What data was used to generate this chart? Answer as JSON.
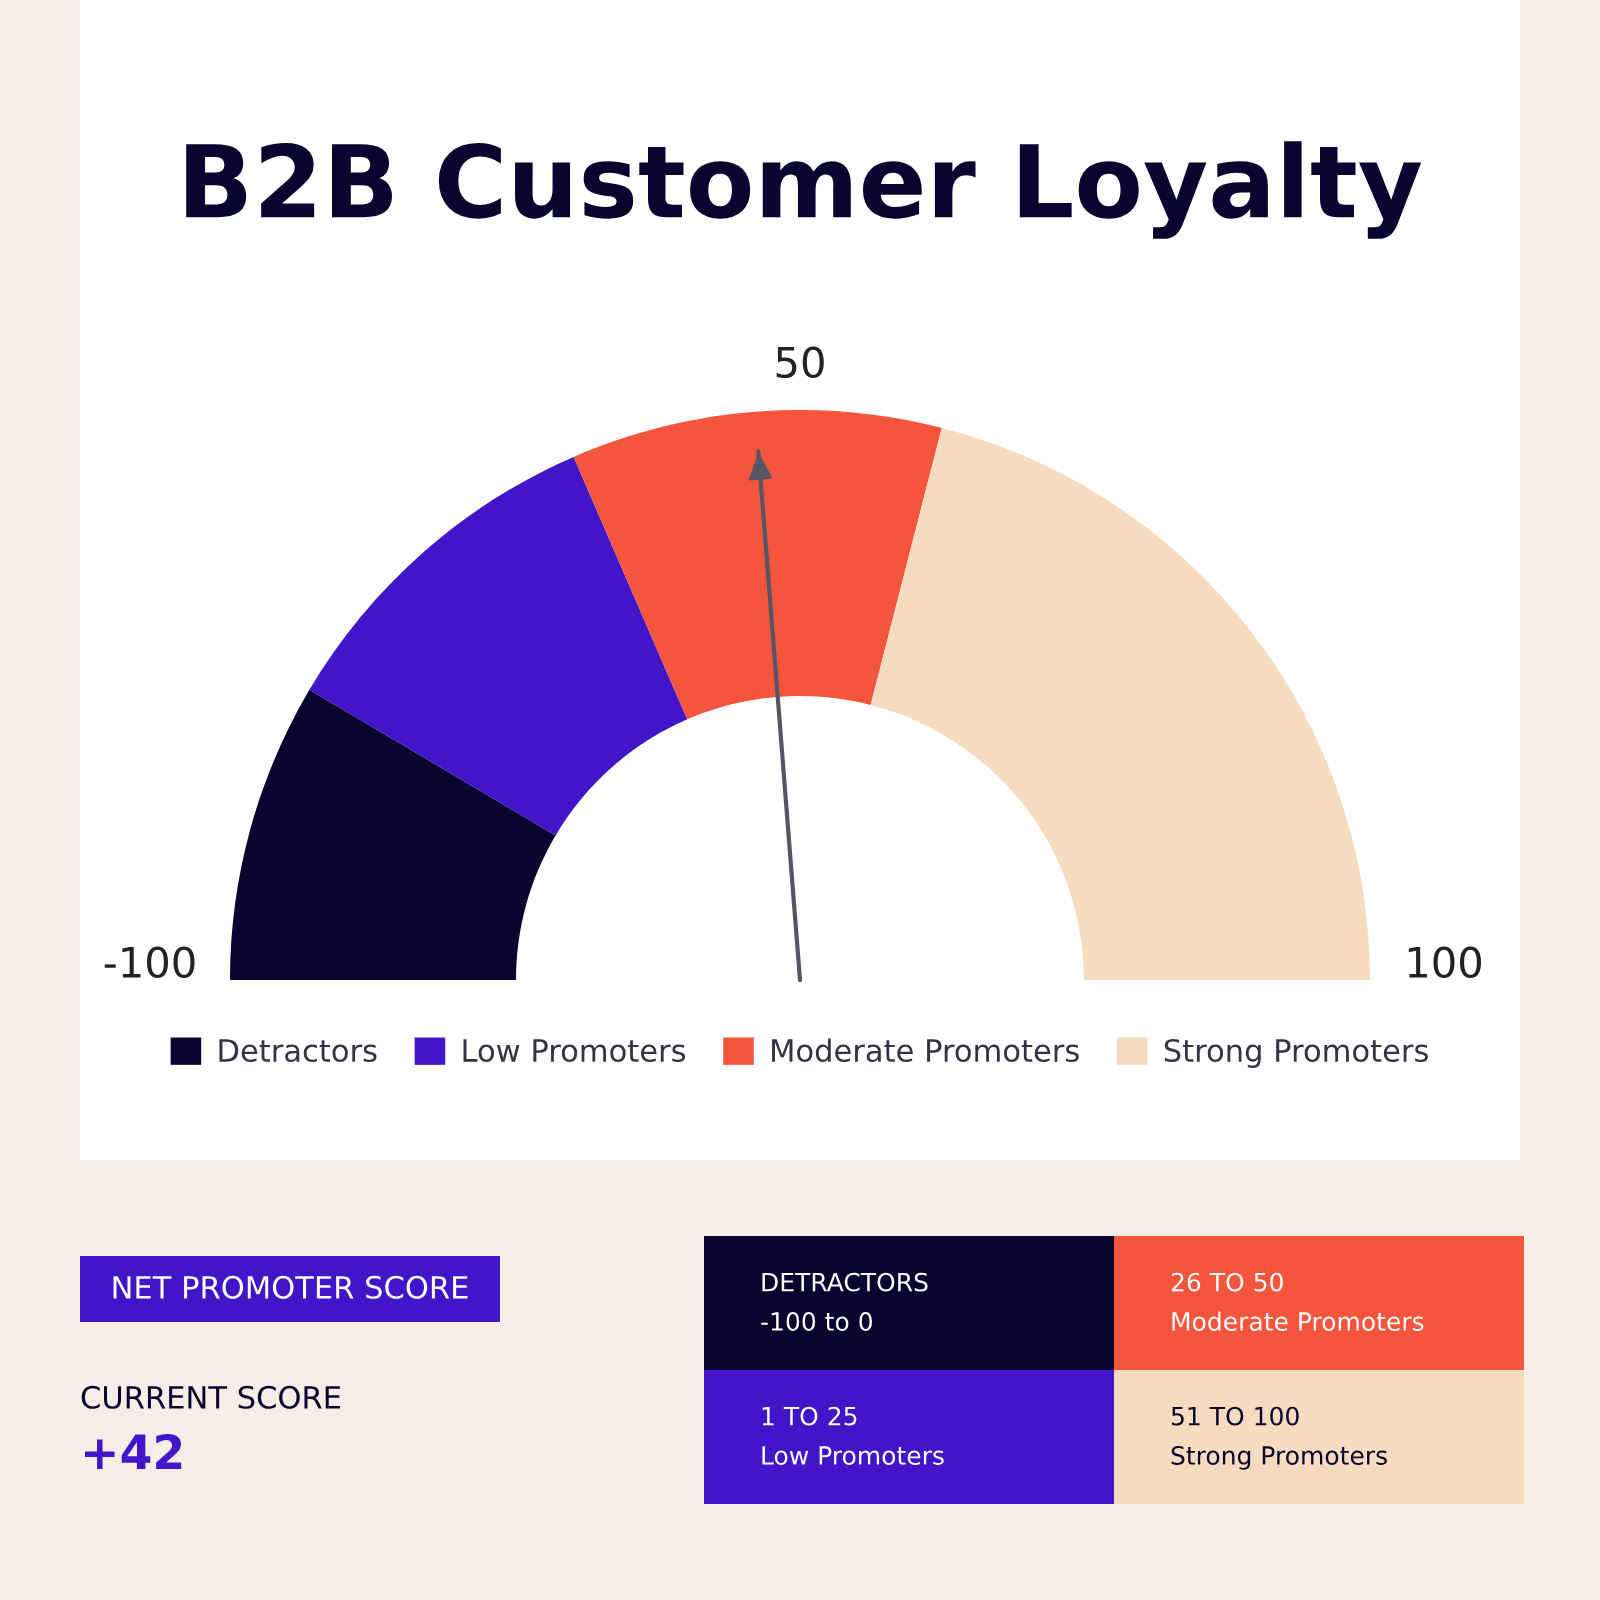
{
  "chart_data": {
    "type": "donut",
    "title": "B2B Customer Loyalty",
    "categories": [
      "Detractors",
      "Low Promoters",
      "Moderate Promoters",
      "Strong Promoters"
    ],
    "values": [
      17,
      20,
      21,
      42
    ],
    "colors": [
      "#0a0530",
      "#4215c8",
      "#f5553c",
      "#f6dcbf"
    ],
    "needle": "Moderate Promoters",
    "legend": "bottom",
    "annotations": [
      "-100",
      "50",
      "100",
      "NET PROMOTER SCORE",
      "CURRENT SCORE",
      "+42",
      "DETRACTORS\n-100 to 0",
      "26 TO 50\nModerate Promoters",
      "1 TO 25\nLow Promoters",
      "51 TO 100\nStrong Promoters"
    ]
  }
}
